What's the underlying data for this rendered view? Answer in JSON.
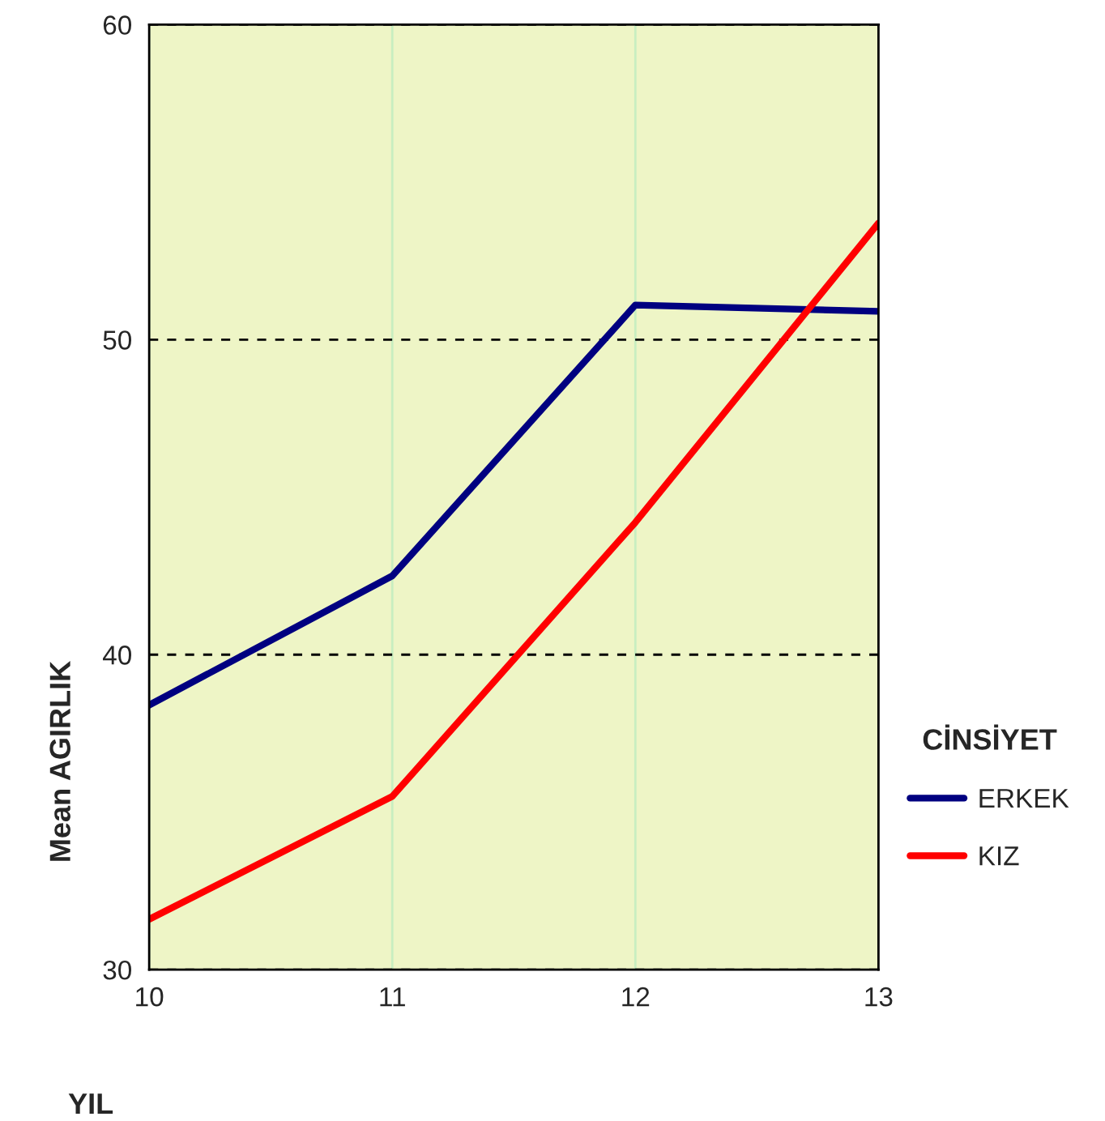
{
  "chart_data": {
    "type": "line",
    "xlabel": "YIL",
    "ylabel": "Mean AGIRLIK",
    "legend_title": "CİNSİYET",
    "x": [
      10,
      11,
      12,
      13
    ],
    "series": [
      {
        "name": "ERKEK",
        "color": "#000080",
        "values": [
          38.4,
          42.5,
          51.1,
          50.9
        ]
      },
      {
        "name": "KIZ",
        "color": "#ff0000",
        "values": [
          31.6,
          35.5,
          44.2,
          53.7
        ]
      }
    ],
    "xlim": [
      10,
      13
    ],
    "xticks": [
      10,
      11,
      12,
      13
    ],
    "ylim": [
      30,
      60
    ],
    "yticks": [
      30,
      40,
      50,
      60
    ],
    "grid": true,
    "legend": "right",
    "marker": "none",
    "line_style": "solid"
  }
}
